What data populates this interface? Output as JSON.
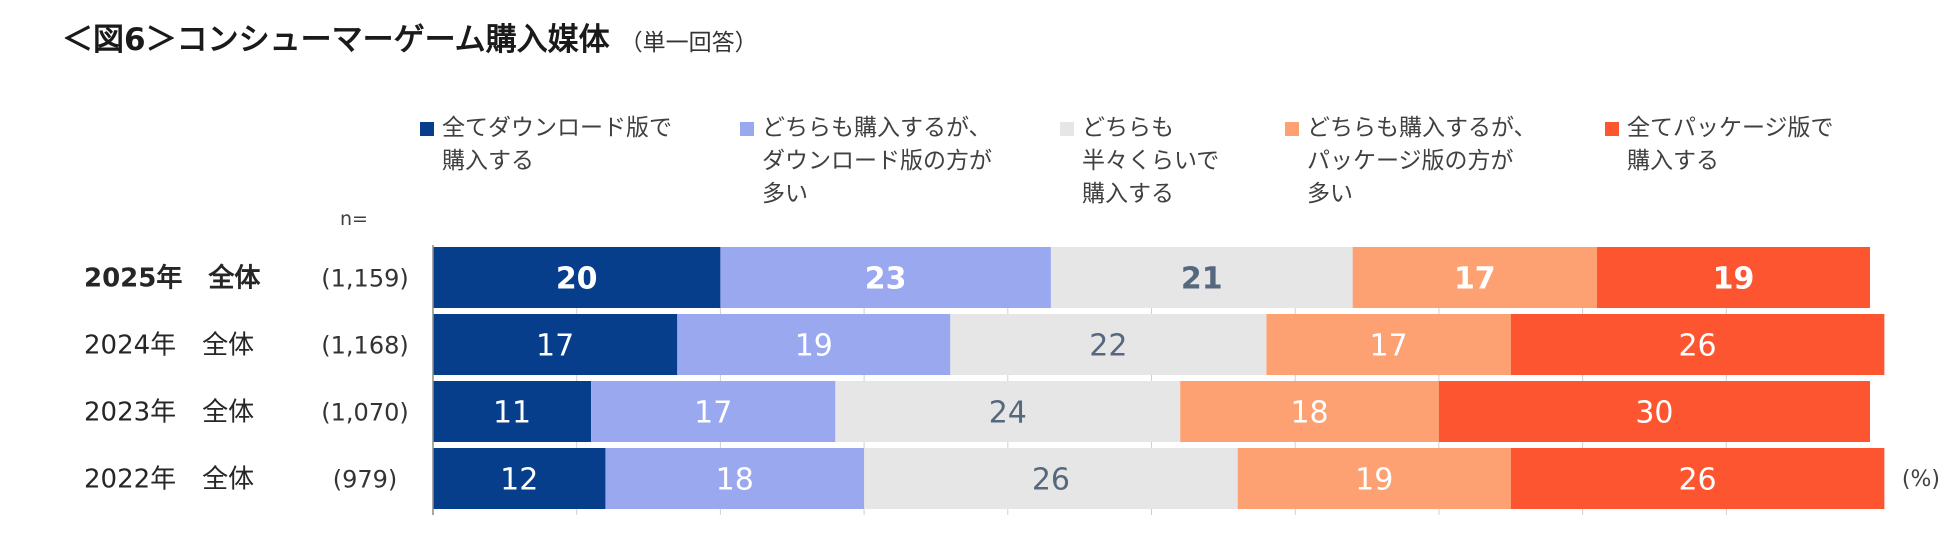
{
  "title": {
    "main": "＜図6＞コンシューマーゲーム購入媒体",
    "sub": "（単一回答）"
  },
  "n_label": "n=",
  "unit": "(%)",
  "chart_data": {
    "type": "bar",
    "orientation": "horizontal",
    "stacked": true,
    "xlim": [
      0,
      100
    ],
    "categories": [
      "2025年　全体",
      "2024年　全体",
      "2023年　全体",
      "2022年　全体"
    ],
    "n_values": [
      "(1,159)",
      "(1,168)",
      "(1,070)",
      "(979)"
    ],
    "highlight_category": "2025年　全体",
    "series": [
      {
        "name": "全てダウンロード版で\n購入する",
        "color": "#063e8c",
        "label_color": "#ffffff",
        "values": [
          20,
          17,
          11,
          12
        ]
      },
      {
        "name": "どちらも購入するが、\nダウンロード版の方が\n多い",
        "color": "#9aa8f0",
        "label_color": "#ffffff",
        "values": [
          23,
          19,
          17,
          18
        ]
      },
      {
        "name": "どちらも\n半々くらいで\n購入する",
        "color": "#e6e6e6",
        "label_color": "#56687e",
        "values": [
          21,
          22,
          24,
          26
        ]
      },
      {
        "name": "どちらも購入するが、\nパッケージ版の方が\n多い",
        "color": "#fea172",
        "label_color": "#ffffff",
        "values": [
          17,
          17,
          18,
          19
        ]
      },
      {
        "name": "全てパッケージ版で\n購入する",
        "color": "#fd5530",
        "label_color": "#ffffff",
        "values": [
          19,
          26,
          30,
          26
        ]
      }
    ],
    "grid": true
  }
}
